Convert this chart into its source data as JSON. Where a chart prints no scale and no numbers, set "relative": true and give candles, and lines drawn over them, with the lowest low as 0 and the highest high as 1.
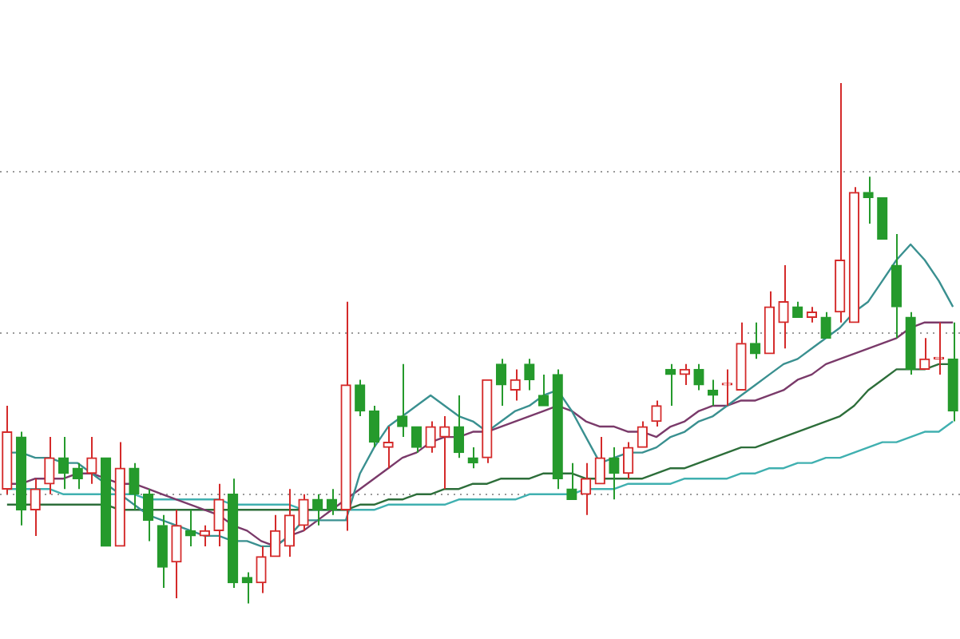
{
  "chart_data": {
    "type": "candlestick",
    "relative": true,
    "legend": false,
    "grid": "y",
    "marker": "none",
    "categories": [
      null,
      null,
      null,
      null,
      null,
      null,
      null,
      null,
      null,
      null,
      null,
      null,
      null,
      null,
      null,
      null,
      null,
      null,
      null,
      null,
      null,
      null,
      null,
      null,
      null,
      null,
      null,
      null,
      null,
      null,
      null,
      null,
      null,
      null,
      null,
      null,
      null,
      null,
      null,
      null,
      null,
      null,
      null,
      null,
      null,
      null,
      null,
      null,
      null,
      null,
      null,
      null,
      null,
      null,
      null,
      null,
      null,
      null,
      null,
      null,
      null,
      null,
      null,
      null,
      null,
      null,
      null,
      null
    ],
    "ohlc": [
      [
        0.22,
        0.38,
        0.21,
        0.33
      ],
      [
        0.32,
        0.33,
        0.15,
        0.18
      ],
      [
        0.18,
        0.24,
        0.13,
        0.22
      ],
      [
        0.23,
        0.32,
        0.21,
        0.28
      ],
      [
        0.28,
        0.32,
        0.22,
        0.25
      ],
      [
        0.26,
        0.27,
        0.22,
        0.24
      ],
      [
        0.25,
        0.32,
        0.23,
        0.28
      ],
      [
        0.28,
        0.28,
        0.11,
        0.11
      ],
      [
        0.11,
        0.31,
        0.11,
        0.26
      ],
      [
        0.26,
        0.27,
        0.18,
        0.21
      ],
      [
        0.21,
        0.22,
        0.12,
        0.16
      ],
      [
        0.15,
        0.17,
        0.03,
        0.07
      ],
      [
        0.08,
        0.18,
        0.01,
        0.15
      ],
      [
        0.14,
        0.18,
        0.11,
        0.13
      ],
      [
        0.13,
        0.15,
        0.11,
        0.14
      ],
      [
        0.14,
        0.23,
        0.11,
        0.2
      ],
      [
        0.21,
        0.24,
        0.03,
        0.04
      ],
      [
        0.05,
        0.06,
        0,
        0.04
      ],
      [
        0.04,
        0.11,
        0.02,
        0.09
      ],
      [
        0.09,
        0.17,
        0.09,
        0.14
      ],
      [
        0.11,
        0.22,
        0.09,
        0.17
      ],
      [
        0.15,
        0.21,
        0.14,
        0.2
      ],
      [
        0.2,
        0.21,
        0.15,
        0.18
      ],
      [
        0.2,
        0.22,
        0.17,
        0.18
      ],
      [
        0.18,
        0.58,
        0.14,
        0.42
      ],
      [
        0.42,
        0.43,
        0.36,
        0.37
      ],
      [
        0.37,
        0.38,
        0.3,
        0.31
      ],
      [
        0.3,
        0.34,
        0.26,
        0.31
      ],
      [
        0.36,
        0.46,
        0.32,
        0.34
      ],
      [
        0.34,
        0.34,
        0.29,
        0.3
      ],
      [
        0.3,
        0.35,
        0.29,
        0.34
      ],
      [
        0.32,
        0.36,
        0.22,
        0.34
      ],
      [
        0.34,
        0.4,
        0.28,
        0.29
      ],
      [
        0.28,
        0.3,
        0.26,
        0.27
      ],
      [
        0.28,
        0.43,
        0.27,
        0.43
      ],
      [
        0.46,
        0.47,
        0.38,
        0.42
      ],
      [
        0.41,
        0.45,
        0.39,
        0.43
      ],
      [
        0.46,
        0.47,
        0.41,
        0.43
      ],
      [
        0.4,
        0.44,
        0.38,
        0.38
      ],
      [
        0.44,
        0.45,
        0.22,
        0.24
      ],
      [
        0.22,
        0.27,
        0.2,
        0.2
      ],
      [
        0.21,
        0.27,
        0.17,
        0.24
      ],
      [
        0.23,
        0.32,
        0.23,
        0.28
      ],
      [
        0.28,
        0.3,
        0.2,
        0.25
      ],
      [
        0.25,
        0.31,
        0.24,
        0.3
      ],
      [
        0.3,
        0.35,
        0.3,
        0.34
      ],
      [
        0.35,
        0.39,
        0.34,
        0.38
      ],
      [
        0.45,
        0.46,
        0.38,
        0.44
      ],
      [
        0.44,
        0.46,
        0.42,
        0.45
      ],
      [
        0.45,
        0.46,
        0.41,
        0.42
      ],
      [
        0.41,
        0.43,
        0.38,
        0.4
      ],
      [
        0.42,
        0.45,
        0.38,
        0.42
      ],
      [
        0.41,
        0.54,
        0.41,
        0.5
      ],
      [
        0.5,
        0.54,
        0.47,
        0.48
      ],
      [
        0.48,
        0.6,
        0.48,
        0.57
      ],
      [
        0.54,
        0.65,
        0.49,
        0.58
      ],
      [
        0.57,
        0.58,
        0.55,
        0.55
      ],
      [
        0.55,
        0.57,
        0.54,
        0.56
      ],
      [
        0.55,
        0.56,
        0.51,
        0.51
      ],
      [
        0.56,
        1,
        0.54,
        0.66
      ],
      [
        0.54,
        0.8,
        0.54,
        0.79
      ],
      [
        0.79,
        0.82,
        0.73,
        0.78
      ],
      [
        0.78,
        0.78,
        0.7,
        0.7
      ],
      [
        0.65,
        0.71,
        0.51,
        0.57
      ],
      [
        0.55,
        0.56,
        0.44,
        0.45
      ],
      [
        0.45,
        0.51,
        0.45,
        0.47
      ],
      [
        0.47,
        0.54,
        0.44,
        0.47
      ],
      [
        0.47,
        0.54,
        0.35,
        0.37
      ]
    ],
    "series": [
      {
        "type": "line",
        "color": "#3a9090",
        "values": [
          0.29,
          0.29,
          0.28,
          0.28,
          0.27,
          0.27,
          0.25,
          0.23,
          0.21,
          0.19,
          0.17,
          0.16,
          0.15,
          0.14,
          0.13,
          0.13,
          0.12,
          0.12,
          0.11,
          0.11,
          0.13,
          0.16,
          0.16,
          0.16,
          0.16,
          0.25,
          0.3,
          0.34,
          0.36,
          0.38,
          0.4,
          0.38,
          0.36,
          0.35,
          0.33,
          0.35,
          0.37,
          0.38,
          0.4,
          0.41,
          0.37,
          0.32,
          0.27,
          0.28,
          0.29,
          0.29,
          0.3,
          0.32,
          0.33,
          0.35,
          0.36,
          0.38,
          0.4,
          0.42,
          0.44,
          0.46,
          0.47,
          0.49,
          0.51,
          0.53,
          0.56,
          0.58,
          0.62,
          0.66,
          0.69,
          0.66,
          0.62,
          0.57
        ]
      },
      {
        "type": "line",
        "color": "#7a3a6a",
        "values": [
          0.23,
          0.23,
          0.24,
          0.24,
          0.24,
          0.25,
          0.25,
          0.24,
          0.23,
          0.23,
          0.22,
          0.21,
          0.2,
          0.19,
          0.18,
          0.17,
          0.15,
          0.14,
          0.12,
          0.11,
          0.13,
          0.14,
          0.16,
          0.18,
          0.2,
          0.22,
          0.24,
          0.26,
          0.28,
          0.29,
          0.31,
          0.32,
          0.32,
          0.33,
          0.33,
          0.34,
          0.35,
          0.36,
          0.37,
          0.38,
          0.37,
          0.35,
          0.34,
          0.34,
          0.33,
          0.33,
          0.32,
          0.34,
          0.35,
          0.37,
          0.38,
          0.38,
          0.39,
          0.39,
          0.4,
          0.41,
          0.43,
          0.44,
          0.46,
          0.47,
          0.48,
          0.49,
          0.5,
          0.51,
          0.53,
          0.54,
          0.54,
          0.54
        ]
      },
      {
        "type": "line",
        "color": "#2d6e3a",
        "values": [
          0.19,
          0.19,
          0.19,
          0.19,
          0.19,
          0.19,
          0.19,
          0.19,
          0.18,
          0.18,
          0.18,
          0.18,
          0.18,
          0.18,
          0.18,
          0.18,
          0.18,
          0.18,
          0.18,
          0.18,
          0.18,
          0.18,
          0.18,
          0.18,
          0.18,
          0.19,
          0.19,
          0.2,
          0.2,
          0.21,
          0.21,
          0.22,
          0.22,
          0.23,
          0.23,
          0.24,
          0.24,
          0.24,
          0.25,
          0.25,
          0.25,
          0.24,
          0.24,
          0.24,
          0.24,
          0.24,
          0.25,
          0.26,
          0.26,
          0.27,
          0.28,
          0.29,
          0.3,
          0.3,
          0.31,
          0.32,
          0.33,
          0.34,
          0.35,
          0.36,
          0.38,
          0.41,
          0.43,
          0.45,
          0.45,
          0.45,
          0.46,
          0.46
        ]
      },
      {
        "type": "line",
        "color": "#40b0b0",
        "values": [
          0.22,
          0.22,
          0.22,
          0.22,
          0.21,
          0.21,
          0.21,
          0.21,
          0.21,
          0.21,
          0.2,
          0.2,
          0.2,
          0.2,
          0.2,
          0.2,
          0.19,
          0.19,
          0.19,
          0.19,
          0.19,
          0.18,
          0.18,
          0.18,
          0.18,
          0.18,
          0.18,
          0.19,
          0.19,
          0.19,
          0.19,
          0.19,
          0.2,
          0.2,
          0.2,
          0.2,
          0.2,
          0.21,
          0.21,
          0.21,
          0.21,
          0.22,
          0.22,
          0.22,
          0.23,
          0.23,
          0.23,
          0.23,
          0.24,
          0.24,
          0.24,
          0.24,
          0.25,
          0.25,
          0.26,
          0.26,
          0.27,
          0.27,
          0.28,
          0.28,
          0.29,
          0.3,
          0.31,
          0.31,
          0.32,
          0.33,
          0.33,
          0.35
        ]
      }
    ]
  }
}
